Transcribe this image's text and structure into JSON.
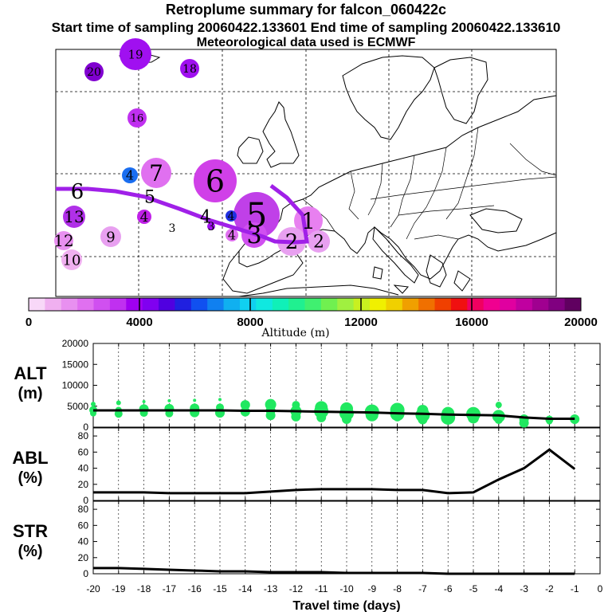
{
  "header": {
    "title": "Retroplume summary for falcon_060422c",
    "sampling_line": "Start time of sampling 20060422.133601      End time of sampling 20060422.133610",
    "met_line": "Meteorological data used is ECMWF"
  },
  "colorbar": {
    "ticks": [
      "0",
      "4000",
      "8000",
      "12000",
      "16000",
      "20000"
    ],
    "label": "Altitude (m)",
    "colors": [
      "#f8d8f8",
      "#f0b0f0",
      "#e890f0",
      "#e070f0",
      "#d050f0",
      "#c030f0",
      "#a000f0",
      "#8000f0",
      "#5000e0",
      "#2020e0",
      "#1050f0",
      "#1080f0",
      "#10b0f0",
      "#10d0f0",
      "#10e8e0",
      "#10f0b8",
      "#20f090",
      "#40f070",
      "#70f050",
      "#a0f040",
      "#c8f020",
      "#f0f000",
      "#f0d000",
      "#f0a000",
      "#f07000",
      "#f04000",
      "#f01010",
      "#f00060",
      "#f00090",
      "#e000a0",
      "#c000a0",
      "#a00090",
      "#800080",
      "#600060"
    ]
  },
  "map_labels": [
    {
      "text": "19",
      "color": "#a010f0"
    },
    {
      "text": "20",
      "color": "#8000d0"
    },
    {
      "text": "18",
      "color": "#a010f0"
    },
    {
      "text": "16",
      "color": "#c030f0"
    },
    {
      "text": "7",
      "color": "#e070f0"
    },
    {
      "text": "6",
      "color": "#d040e8"
    },
    {
      "text": "4",
      "color": "#1a6ef0"
    },
    {
      "text": "6",
      "color": "#c040e8"
    },
    {
      "text": "5",
      "color": "#d860f0"
    },
    {
      "text": "5",
      "color": "#c040e8"
    },
    {
      "text": "4",
      "color": "#c020e8"
    },
    {
      "text": "4",
      "color": "#c020e8"
    },
    {
      "text": "13",
      "color": "#b030e8"
    },
    {
      "text": "3",
      "color": "#a000f0"
    },
    {
      "text": "4",
      "color": "#2030e0"
    },
    {
      "text": "3",
      "color": "#a010f0"
    },
    {
      "text": "1",
      "color": "#e880f0"
    },
    {
      "text": "12",
      "color": "#e890f0"
    },
    {
      "text": "9",
      "color": "#e8a0f0"
    },
    {
      "text": "4",
      "color": "#e070f0"
    },
    {
      "text": "3",
      "color": "#d050f0"
    },
    {
      "text": "2",
      "color": "#e8a0f0"
    },
    {
      "text": "2",
      "color": "#e8a0f0"
    },
    {
      "text": "10",
      "color": "#f0b0f0"
    }
  ],
  "chart_data": [
    {
      "type": "scatter",
      "panel": "ALT",
      "ylabel": "ALT (m)",
      "ylim": [
        0,
        20000
      ],
      "yticks": [
        0,
        5000,
        10000,
        15000,
        20000
      ],
      "x": [
        -20,
        -19,
        -18,
        -17,
        -16,
        -15,
        -14,
        -13,
        -12,
        -11,
        -10,
        -9,
        -8,
        -7,
        -6,
        -5,
        -4,
        -3,
        -2,
        -1
      ],
      "line_values": [
        4000,
        4000,
        4000,
        4000,
        4000,
        4000,
        3900,
        3900,
        3800,
        3700,
        3600,
        3500,
        3300,
        3200,
        3000,
        2900,
        2800,
        2300,
        2000,
        2000
      ],
      "dots": [
        [
          -20,
          5500,
          3
        ],
        [
          -20,
          4100,
          5
        ],
        [
          -20,
          3300,
          4
        ],
        [
          -19,
          5800,
          3
        ],
        [
          -19,
          4100,
          4
        ],
        [
          -19,
          3200,
          5
        ],
        [
          -18,
          6100,
          2
        ],
        [
          -18,
          4300,
          6
        ],
        [
          -18,
          3400,
          5
        ],
        [
          -17,
          6300,
          2
        ],
        [
          -17,
          4400,
          6
        ],
        [
          -17,
          3300,
          5
        ],
        [
          -16,
          6400,
          2
        ],
        [
          -16,
          4500,
          6
        ],
        [
          -16,
          3500,
          6
        ],
        [
          -15,
          6600,
          2
        ],
        [
          -15,
          4700,
          5
        ],
        [
          -15,
          3400,
          6
        ],
        [
          -14,
          5300,
          6
        ],
        [
          -14,
          3700,
          6
        ],
        [
          -13,
          5400,
          7
        ],
        [
          -13,
          4000,
          6
        ],
        [
          -13,
          2800,
          6
        ],
        [
          -12,
          5300,
          5
        ],
        [
          -12,
          3800,
          7
        ],
        [
          -12,
          2500,
          6
        ],
        [
          -11,
          4700,
          8
        ],
        [
          -11,
          3800,
          9
        ],
        [
          -11,
          2300,
          6
        ],
        [
          -10,
          4400,
          8
        ],
        [
          -10,
          3300,
          9
        ],
        [
          -10,
          1900,
          6
        ],
        [
          -9,
          3700,
          9
        ],
        [
          -9,
          2900,
          8
        ],
        [
          -8,
          4100,
          9
        ],
        [
          -8,
          3200,
          9
        ],
        [
          -8,
          2300,
          5
        ],
        [
          -7,
          4000,
          7
        ],
        [
          -7,
          2900,
          9
        ],
        [
          -7,
          1800,
          6
        ],
        [
          -6,
          3300,
          8
        ],
        [
          -6,
          2300,
          9
        ],
        [
          -5,
          3100,
          9
        ],
        [
          -5,
          2200,
          7
        ],
        [
          -4,
          5300,
          4
        ],
        [
          -4,
          2600,
          8
        ],
        [
          -4,
          1700,
          5
        ],
        [
          -3,
          1900,
          6
        ],
        [
          -3,
          1000,
          6
        ],
        [
          -2,
          1800,
          5
        ],
        [
          -2,
          1400,
          4
        ],
        [
          -1,
          1900,
          6
        ],
        [
          -1,
          1700,
          5
        ]
      ]
    },
    {
      "type": "line",
      "panel": "ABL",
      "ylabel": "ABL (%)",
      "ylim": [
        0,
        90
      ],
      "yticks": [
        0,
        20,
        40,
        60,
        80
      ],
      "x": [
        -20,
        -19,
        -18,
        -17,
        -16,
        -15,
        -14,
        -13,
        -12,
        -11,
        -10,
        -9,
        -8,
        -7,
        -6,
        -5,
        -4,
        -3,
        -2,
        -1
      ],
      "values": [
        10,
        10,
        10,
        9,
        9,
        9,
        9,
        11,
        13,
        14,
        14,
        14,
        13,
        13,
        9,
        10,
        26,
        40,
        63,
        39
      ]
    },
    {
      "type": "line",
      "panel": "STR",
      "ylabel": "STR (%)",
      "ylim": [
        0,
        90
      ],
      "yticks": [
        0,
        20,
        40,
        60,
        80
      ],
      "x": [
        -20,
        -19,
        -18,
        -17,
        -16,
        -15,
        -14,
        -13,
        -12,
        -11,
        -10,
        -9,
        -8,
        -7,
        -6,
        -5,
        -4,
        -3,
        -2,
        -1
      ],
      "values": [
        7,
        7,
        6,
        5,
        4,
        3,
        3,
        2,
        2,
        2,
        1,
        1,
        1,
        1,
        0,
        0,
        0,
        0,
        0,
        0
      ],
      "xlabel": "Travel time (days)",
      "xticks": [
        -20,
        -19,
        -18,
        -17,
        -16,
        -15,
        -14,
        -13,
        -12,
        -11,
        -10,
        -9,
        -8,
        -7,
        -6,
        -5,
        -4,
        -3,
        -2,
        -1,
        0
      ]
    }
  ]
}
